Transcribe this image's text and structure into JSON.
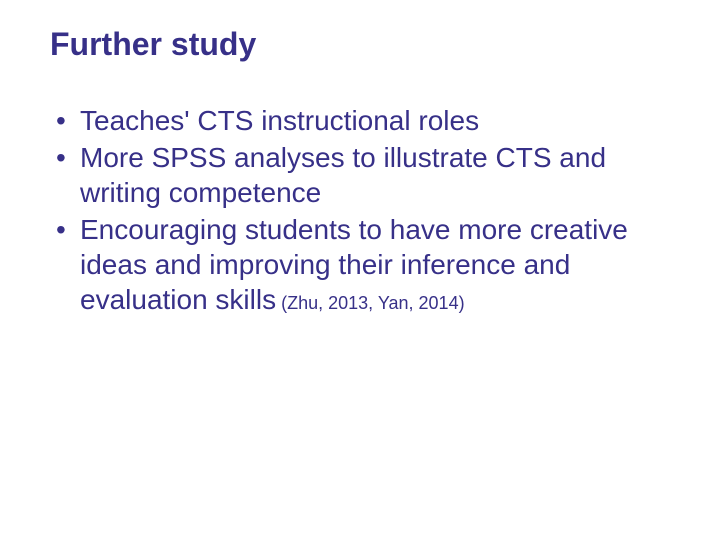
{
  "slide": {
    "title": "Further study",
    "bullets": [
      {
        "text": "Teaches' CTS instructional roles"
      },
      {
        "text": "More SPSS analyses to illustrate CTS and writing competence"
      },
      {
        "text": "Encouraging students to have more creative ideas and improving their inference and evaluation skills",
        "citation": " (Zhu, 2013, Yan, 2014)"
      }
    ],
    "colors": {
      "text": "#373088",
      "background": "#ffffff"
    },
    "typography": {
      "title_fontsize": 32,
      "title_weight": "bold",
      "body_fontsize": 28,
      "citation_fontsize": 18,
      "font_family": "Arial"
    }
  }
}
